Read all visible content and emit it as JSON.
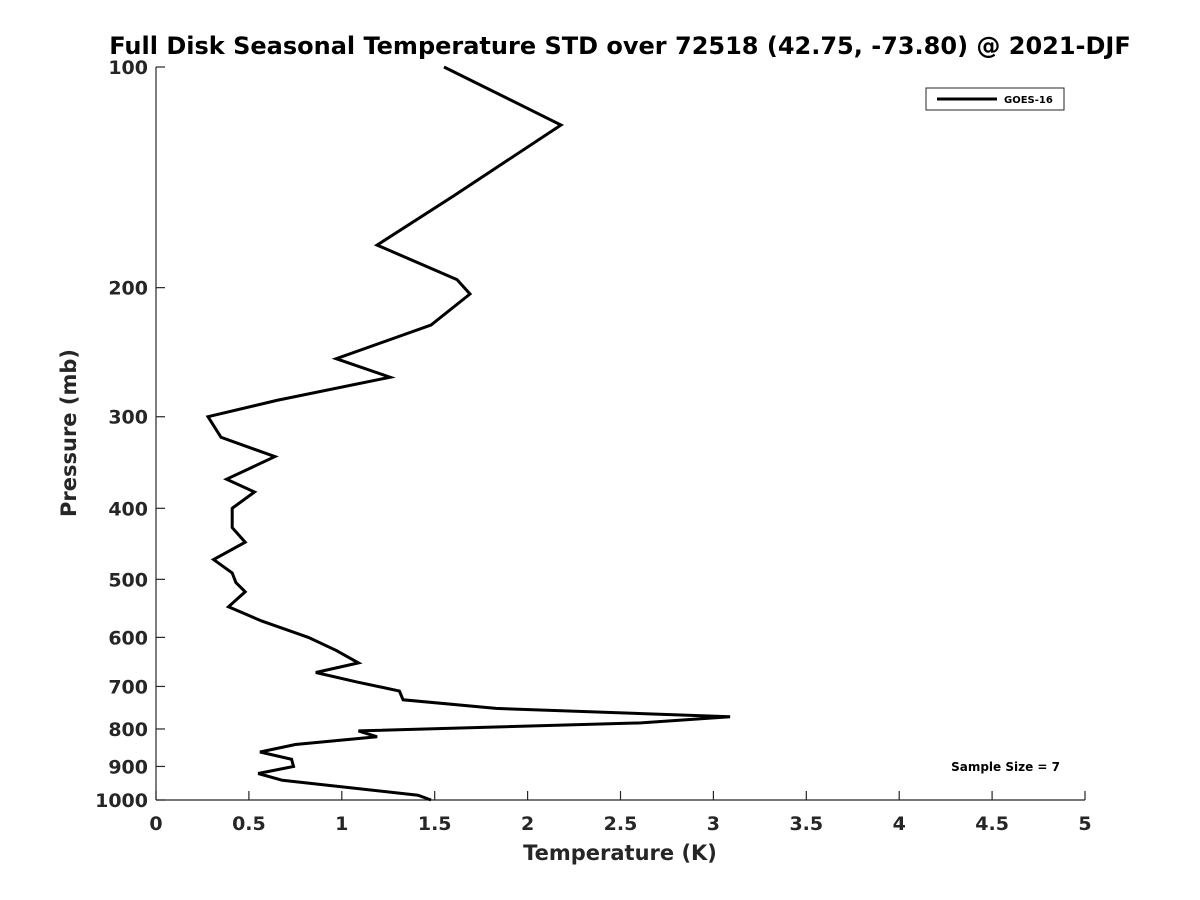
{
  "chart_data": {
    "type": "line",
    "title": "Full Disk Seasonal Temperature STD over 72518 (42.75, -73.80) @ 2021-DJF",
    "xlabel": "Temperature (K)",
    "ylabel": "Pressure (mb)",
    "xlim": [
      0,
      5
    ],
    "ylim": [
      100,
      1000
    ],
    "y_scale": "log",
    "y_reversed": true,
    "xticks": [
      0,
      0.5,
      1,
      1.5,
      2,
      2.5,
      3,
      3.5,
      4,
      4.5,
      5
    ],
    "xtick_labels": [
      "0",
      "0.5",
      "1",
      "1.5",
      "2",
      "2.5",
      "3",
      "3.5",
      "4",
      "4.5",
      "5"
    ],
    "yticks": [
      100,
      200,
      300,
      400,
      500,
      600,
      700,
      800,
      900,
      1000
    ],
    "ytick_labels": [
      "100",
      "200",
      "300",
      "400",
      "500",
      "600",
      "700",
      "800",
      "900",
      "1000"
    ],
    "grid": false,
    "legend_position": "top-right",
    "annotation": "Sample Size = 7",
    "series": [
      {
        "name": "GOES-16",
        "color": "#000000",
        "x": [
          1.55,
          2.18,
          1.6,
          1.19,
          1.62,
          1.69,
          1.48,
          0.97,
          1.26,
          0.65,
          0.28,
          0.35,
          0.64,
          0.38,
          0.53,
          0.41,
          0.41,
          0.48,
          0.31,
          0.41,
          0.43,
          0.48,
          0.39,
          0.57,
          0.82,
          0.97,
          1.09,
          0.86,
          1.08,
          1.31,
          1.33,
          1.83,
          3.09,
          2.61,
          1.09,
          1.19,
          0.75,
          0.56,
          0.73,
          0.74,
          0.55,
          0.68,
          1.41,
          1.48
        ],
        "y": [
          100,
          120,
          150,
          175,
          195,
          204,
          225,
          250,
          265,
          285,
          300,
          320,
          340,
          365,
          380,
          400,
          425,
          445,
          470,
          490,
          505,
          520,
          545,
          570,
          600,
          625,
          650,
          670,
          690,
          710,
          730,
          750,
          770,
          785,
          805,
          820,
          840,
          860,
          880,
          900,
          920,
          940,
          985,
          1000
        ]
      }
    ]
  }
}
